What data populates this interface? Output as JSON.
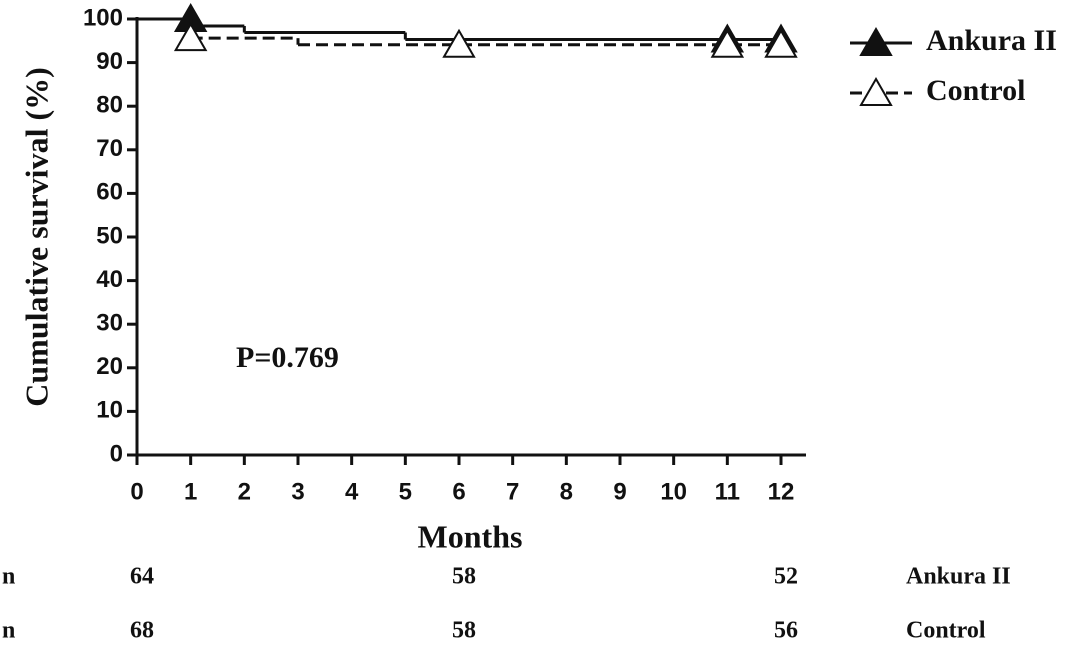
{
  "chart_data": {
    "type": "step",
    "xlabel": "Months",
    "ylabel": "Cumulative survival (%)",
    "xlim": [
      0,
      12
    ],
    "xticks": [
      0,
      1,
      2,
      3,
      4,
      5,
      6,
      7,
      8,
      9,
      10,
      11,
      12
    ],
    "ylim": [
      0,
      100
    ],
    "yticks": [
      0,
      10,
      20,
      30,
      40,
      50,
      60,
      70,
      80,
      90,
      100
    ],
    "annotation": "P=0.769",
    "legend": "upper right",
    "series": [
      {
        "name": "Ankura II",
        "color": "#111111",
        "dashed": false,
        "filled_markers": true,
        "x": [
          0,
          1,
          2,
          5,
          12
        ],
        "values": [
          100,
          98.4,
          96.9,
          95.3,
          95.3
        ],
        "censor_x": [
          1,
          11,
          12
        ],
        "censor_values": [
          100,
          95.3,
          95.3
        ]
      },
      {
        "name": "Control",
        "color": "#111111",
        "dashed": true,
        "filled_markers": false,
        "x": [
          0,
          1,
          3,
          12
        ],
        "values": [
          100,
          95.6,
          94.1,
          94.1
        ],
        "censor_x": [
          1,
          6,
          11,
          12
        ],
        "censor_values": [
          95.6,
          94.1,
          94.1,
          94.1
        ]
      }
    ],
    "risk_table": {
      "label": "n",
      "x": [
        0,
        6,
        12
      ],
      "rows": [
        {
          "name": "Ankura II",
          "values": [
            64,
            58,
            52
          ]
        },
        {
          "name": "Control",
          "values": [
            68,
            58,
            56
          ]
        }
      ]
    }
  }
}
